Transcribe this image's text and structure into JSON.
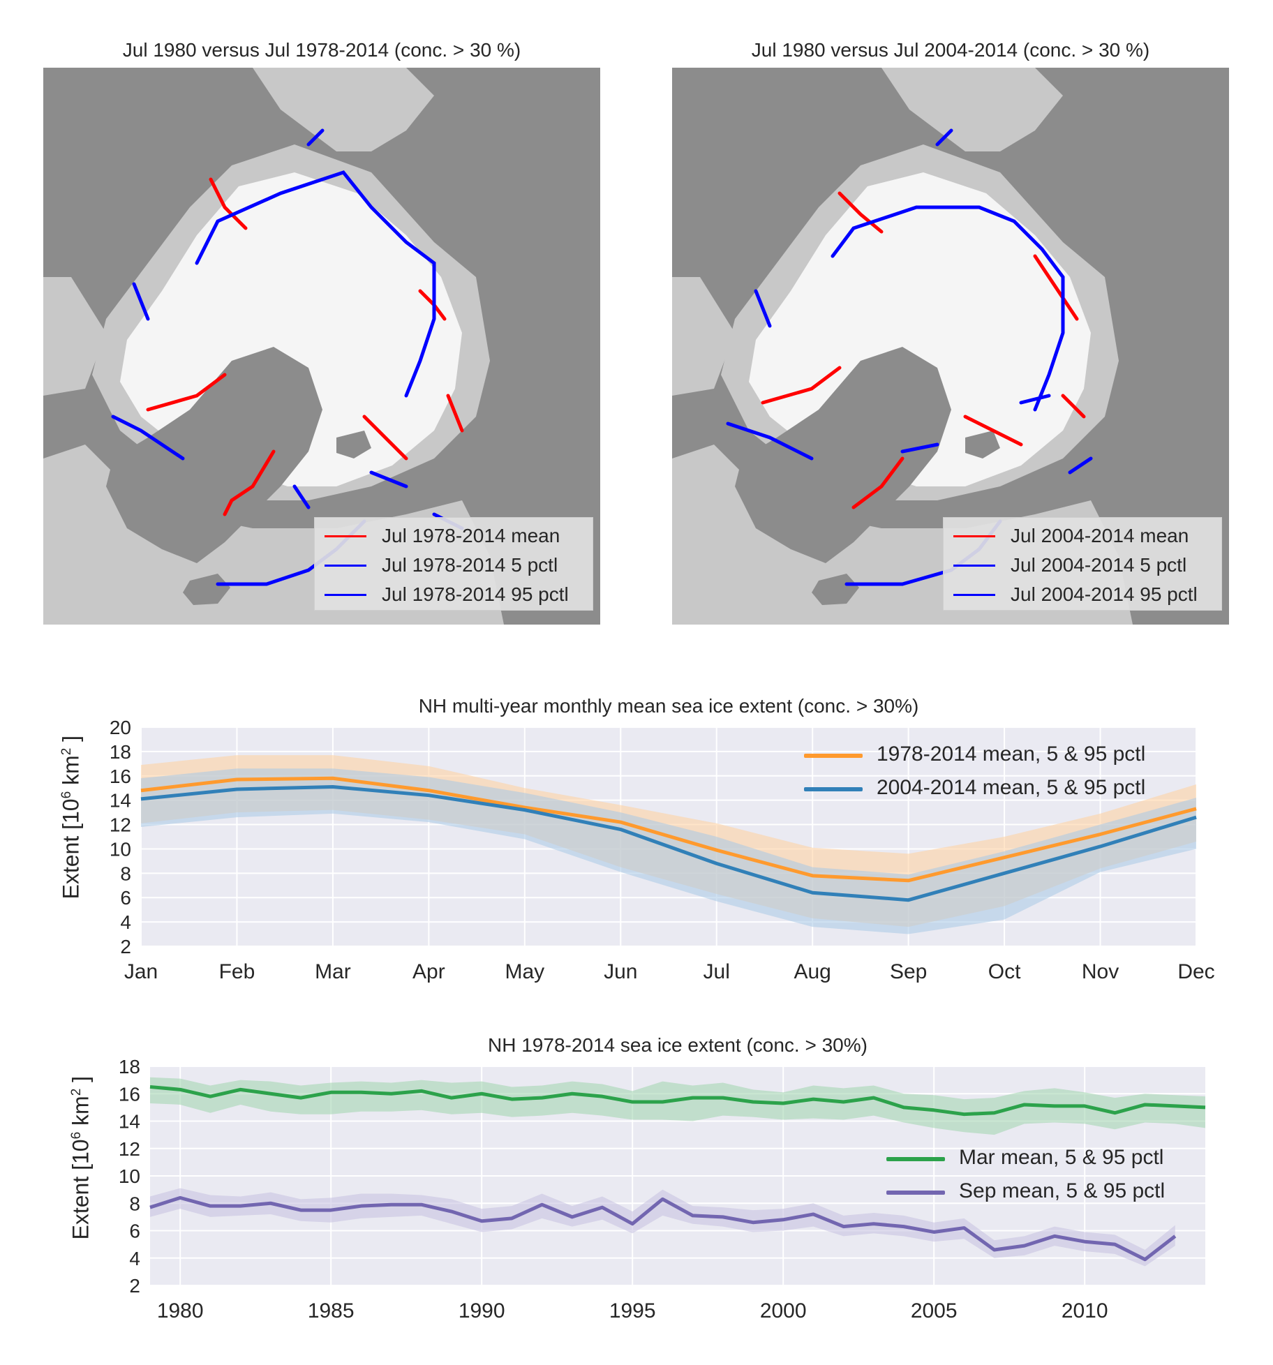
{
  "maps": [
    {
      "title": "Jul 1980 versus Jul 1978-2014 (conc. > 30 %)",
      "legend": [
        {
          "label": "Jul 1978-2014 mean",
          "color": "#ff0000"
        },
        {
          "label": "Jul 1978-2014 5 pctl",
          "color": "#0000ff"
        },
        {
          "label": "Jul 1978-2014 95 pctl",
          "color": "#0000ff"
        }
      ]
    },
    {
      "title": "Jul 1980 versus Jul 2004-2014 (conc. > 30 %)",
      "legend": [
        {
          "label": "Jul 2004-2014 mean",
          "color": "#ff0000"
        },
        {
          "label": "Jul 2004-2014 5 pctl",
          "color": "#0000ff"
        },
        {
          "label": "Jul 2004-2014 95 pctl",
          "color": "#0000ff"
        }
      ]
    }
  ],
  "colors": {
    "land": "#8c8c8c",
    "ocean": "#c8c8c8",
    "ice": "#f5f5f5",
    "plot_bg": "#eaeaf2",
    "grid": "#ffffff"
  },
  "chart_data": [
    {
      "type": "line",
      "title": "NH multi-year monthly mean sea ice extent (conc. > 30%)",
      "ylabel_main": "Extent [10",
      "ylabel_sup": "6",
      "ylabel_tail": "km",
      "ylabel_sup2": "2",
      "ylabel_close": "]",
      "categories": [
        "Jan",
        "Feb",
        "Mar",
        "Apr",
        "May",
        "Jun",
        "Jul",
        "Aug",
        "Sep",
        "Oct",
        "Nov",
        "Dec"
      ],
      "yticks": [
        "2",
        "4",
        "6",
        "8",
        "10",
        "12",
        "14",
        "16",
        "18",
        "20"
      ],
      "ylim": [
        2,
        20
      ],
      "grid": true,
      "legend_position": "top-right",
      "series": [
        {
          "name": "1978-2014 mean, 5 & 95 pctl",
          "color": "#ff9a2e",
          "band_color": "#ffcf9c",
          "values": [
            14.8,
            15.7,
            15.8,
            14.8,
            13.4,
            12.2,
            9.9,
            7.8,
            7.4,
            9.3,
            11.2,
            13.3
          ],
          "lower": [
            12.1,
            13.0,
            13.2,
            12.4,
            11.2,
            8.5,
            6.3,
            4.3,
            3.6,
            5.3,
            8.4,
            10.6
          ],
          "upper": [
            16.9,
            17.7,
            17.7,
            16.8,
            15.0,
            13.6,
            12.1,
            10.1,
            9.6,
            11.0,
            12.9,
            15.3
          ]
        },
        {
          "name": "2004-2014 mean, 5 & 95 pctl",
          "color": "#3180b8",
          "band_color": "#a7c8e6",
          "values": [
            14.1,
            14.9,
            15.1,
            14.4,
            13.2,
            11.6,
            8.8,
            6.4,
            5.8,
            8.0,
            10.2,
            12.6
          ],
          "lower": [
            11.8,
            12.6,
            12.9,
            12.2,
            10.8,
            8.1,
            5.7,
            3.6,
            3.0,
            4.2,
            8.1,
            10.0
          ],
          "upper": [
            15.8,
            16.6,
            16.6,
            15.9,
            14.6,
            13.0,
            11.0,
            8.5,
            7.9,
            9.8,
            12.0,
            14.2
          ]
        }
      ]
    },
    {
      "type": "line",
      "title": "NH 1978-2014 sea ice extent (conc. > 30%)",
      "ylabel_main": "Extent [10",
      "ylabel_sup": "6",
      "ylabel_tail": "km",
      "ylabel_sup2": "2",
      "ylabel_close": "]",
      "xlim": [
        1979,
        2014
      ],
      "xticks": [
        "1980",
        "1985",
        "1990",
        "1995",
        "2000",
        "2005",
        "2010"
      ],
      "yticks": [
        "2",
        "4",
        "6",
        "8",
        "10",
        "12",
        "14",
        "16",
        "18"
      ],
      "ylim": [
        2,
        18
      ],
      "grid": true,
      "legend_position": "center-right",
      "series": [
        {
          "name": "Mar mean, 5 & 95 pctl",
          "color": "#2ca24b",
          "band_color": "#9fd4ad",
          "x": [
            1979,
            1980,
            1981,
            1982,
            1983,
            1984,
            1985,
            1986,
            1987,
            1988,
            1989,
            1990,
            1991,
            1992,
            1993,
            1994,
            1995,
            1996,
            1997,
            1998,
            1999,
            2000,
            2001,
            2002,
            2003,
            2004,
            2005,
            2006,
            2007,
            2008,
            2009,
            2010,
            2011,
            2012,
            2013,
            2014
          ],
          "values": [
            16.5,
            16.3,
            15.8,
            16.3,
            16.0,
            15.7,
            16.1,
            16.1,
            16.0,
            16.2,
            15.7,
            16.0,
            15.6,
            15.7,
            16.0,
            15.8,
            15.4,
            15.4,
            15.7,
            15.7,
            15.4,
            15.3,
            15.6,
            15.4,
            15.7,
            15.0,
            14.8,
            14.5,
            14.6,
            15.2,
            15.1,
            15.1,
            14.6,
            15.2,
            15.1,
            15.0
          ],
          "lower": [
            15.3,
            15.2,
            14.6,
            15.2,
            14.7,
            14.5,
            14.5,
            14.7,
            14.7,
            14.8,
            14.5,
            14.6,
            14.3,
            14.4,
            14.6,
            14.4,
            14.1,
            14.1,
            14.0,
            14.4,
            14.3,
            14.1,
            14.2,
            14.1,
            14.4,
            13.9,
            13.5,
            13.2,
            13.0,
            13.8,
            13.9,
            13.8,
            13.4,
            13.9,
            13.8,
            13.5
          ],
          "upper": [
            17.2,
            17.1,
            16.6,
            17.0,
            16.9,
            16.6,
            16.8,
            16.9,
            16.8,
            17.0,
            16.8,
            16.9,
            16.5,
            16.6,
            16.9,
            16.7,
            16.2,
            16.9,
            16.6,
            16.8,
            16.3,
            16.1,
            16.6,
            16.4,
            16.6,
            16.0,
            15.9,
            15.6,
            15.7,
            16.2,
            16.4,
            16.1,
            15.7,
            16.0,
            15.9,
            15.8
          ]
        },
        {
          "name": "Sep mean, 5 & 95 pctl",
          "color": "#7266b0",
          "band_color": "#c4bfe0",
          "x": [
            1979,
            1980,
            1981,
            1982,
            1983,
            1984,
            1985,
            1986,
            1987,
            1988,
            1989,
            1990,
            1991,
            1992,
            1993,
            1994,
            1995,
            1996,
            1997,
            1998,
            1999,
            2000,
            2001,
            2002,
            2003,
            2004,
            2005,
            2006,
            2007,
            2008,
            2009,
            2010,
            2011,
            2012,
            2013
          ],
          "values": [
            7.7,
            8.4,
            7.8,
            7.8,
            8.0,
            7.5,
            7.5,
            7.8,
            7.9,
            7.9,
            7.4,
            6.7,
            6.9,
            7.9,
            7.0,
            7.7,
            6.5,
            8.3,
            7.1,
            7.0,
            6.6,
            6.8,
            7.2,
            6.3,
            6.5,
            6.3,
            5.9,
            6.2,
            4.6,
            4.9,
            5.6,
            5.2,
            5.0,
            3.9,
            5.6
          ],
          "lower": [
            7.0,
            7.6,
            7.0,
            7.1,
            7.2,
            6.7,
            6.6,
            6.9,
            7.0,
            7.1,
            6.5,
            5.9,
            6.1,
            6.9,
            6.3,
            6.8,
            5.8,
            7.1,
            6.5,
            6.3,
            5.9,
            6.0,
            6.3,
            5.6,
            5.8,
            5.6,
            5.2,
            5.4,
            4.0,
            4.2,
            4.9,
            4.5,
            4.3,
            3.4,
            4.9
          ],
          "upper": [
            8.5,
            9.1,
            8.6,
            8.5,
            8.8,
            8.3,
            8.4,
            8.7,
            8.7,
            8.6,
            8.3,
            7.6,
            7.8,
            8.7,
            7.8,
            8.5,
            7.4,
            9.0,
            7.8,
            7.7,
            7.5,
            7.6,
            8.0,
            7.1,
            7.3,
            7.1,
            6.6,
            6.9,
            5.3,
            5.6,
            6.3,
            5.9,
            5.7,
            4.6,
            6.4
          ]
        }
      ]
    }
  ]
}
